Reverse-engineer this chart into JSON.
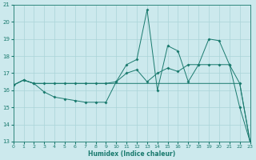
{
  "xlabel": "Humidex (Indice chaleur)",
  "bg_color": "#cce9ed",
  "grid_color": "#aad4d8",
  "line_color": "#1a7a6e",
  "xmin": 0,
  "xmax": 23,
  "ymin": 13,
  "ymax": 21,
  "yticks": [
    13,
    14,
    15,
    16,
    17,
    18,
    19,
    20,
    21
  ],
  "xticks": [
    0,
    1,
    2,
    3,
    4,
    5,
    6,
    7,
    8,
    9,
    10,
    11,
    12,
    13,
    14,
    15,
    16,
    17,
    18,
    19,
    20,
    21,
    22,
    23
  ],
  "line1_x": [
    0,
    1,
    2,
    3,
    4,
    5,
    6,
    7,
    8,
    9,
    10,
    11,
    12,
    13,
    14,
    15,
    16,
    17,
    18,
    19,
    20,
    21,
    22,
    23
  ],
  "line1_y": [
    16.3,
    16.6,
    16.4,
    16.4,
    16.4,
    16.4,
    16.4,
    16.4,
    16.4,
    16.4,
    16.4,
    16.4,
    16.4,
    16.4,
    16.4,
    16.4,
    16.4,
    16.4,
    16.4,
    16.4,
    16.4,
    16.4,
    16.4,
    13.0
  ],
  "line2_x": [
    0,
    1,
    2,
    3,
    4,
    5,
    6,
    7,
    8,
    9,
    10,
    11,
    12,
    13,
    14,
    15,
    16,
    17,
    18,
    19,
    20,
    21,
    22,
    23
  ],
  "line2_y": [
    16.3,
    16.6,
    16.4,
    15.9,
    15.6,
    15.5,
    15.4,
    15.3,
    15.3,
    15.3,
    16.5,
    17.5,
    17.8,
    20.7,
    16.0,
    18.6,
    18.3,
    16.5,
    17.5,
    19.0,
    18.9,
    17.5,
    15.0,
    13.0
  ],
  "line3_x": [
    0,
    1,
    2,
    3,
    4,
    5,
    6,
    7,
    8,
    9,
    10,
    11,
    12,
    13,
    14,
    15,
    16,
    17,
    18,
    19,
    20,
    21,
    22,
    23
  ],
  "line3_y": [
    16.3,
    16.6,
    16.4,
    16.4,
    16.4,
    16.4,
    16.4,
    16.4,
    16.4,
    16.4,
    16.5,
    17.0,
    17.2,
    16.5,
    17.0,
    17.3,
    17.1,
    17.5,
    17.5,
    17.5,
    17.5,
    17.5,
    16.4,
    13.0
  ]
}
